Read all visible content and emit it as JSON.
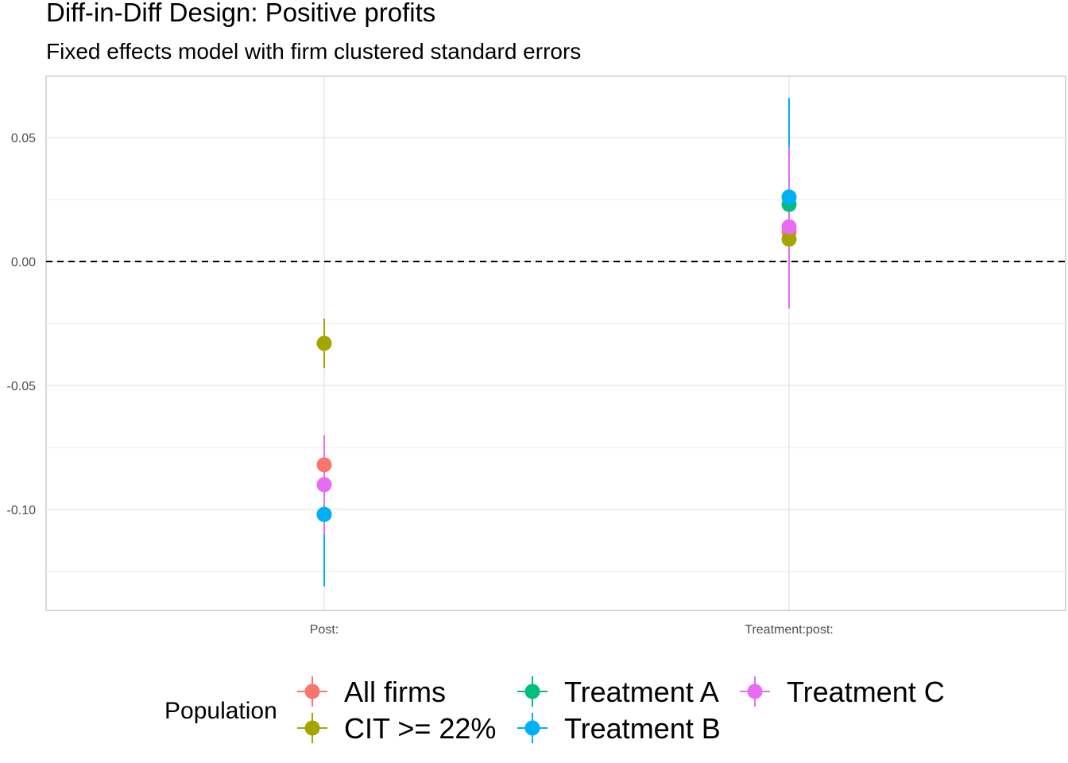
{
  "chart_data": {
    "type": "scatter",
    "title": "Diff-in-Diff Design: Positive profits",
    "subtitle": "Fixed effects model with firm clustered standard errors",
    "xlabel": "",
    "ylabel": "",
    "categories": [
      "Post:",
      "Treatment:post:"
    ],
    "ylim": [
      -0.14,
      0.075
    ],
    "yticks": [
      0.05,
      0.0,
      -0.05,
      -0.1
    ],
    "ytick_labels": [
      "0.05",
      "0.00",
      "-0.05",
      "-0.10"
    ],
    "reference_line": {
      "y": 0,
      "style": "dashed"
    },
    "grid": true,
    "legend": {
      "title": "Population",
      "position": "bottom"
    },
    "series": [
      {
        "name": "All firms",
        "color": "#F8766D",
        "points": [
          {
            "category": "Post:",
            "estimate": -0.082,
            "lower": -0.092,
            "upper": -0.072
          },
          {
            "category": "Treatment:post:",
            "estimate": 0.012,
            "lower": 0.002,
            "upper": 0.022
          }
        ]
      },
      {
        "name": "CIT >= 22%",
        "color": "#A3A500",
        "points": [
          {
            "category": "Post:",
            "estimate": -0.033,
            "lower": -0.043,
            "upper": -0.023
          },
          {
            "category": "Treatment:post:",
            "estimate": 0.009,
            "lower": -0.017,
            "upper": 0.034
          }
        ]
      },
      {
        "name": "Treatment A",
        "color": "#00BF7D",
        "points": [
          {
            "category": "Post:",
            "estimate": -0.102,
            "lower": -0.108,
            "upper": -0.096
          },
          {
            "category": "Treatment:post:",
            "estimate": 0.023,
            "lower": 0.013,
            "upper": 0.033
          }
        ]
      },
      {
        "name": "Treatment B",
        "color": "#00B0F6",
        "points": [
          {
            "category": "Post:",
            "estimate": -0.102,
            "lower": -0.131,
            "upper": -0.073
          },
          {
            "category": "Treatment:post:",
            "estimate": 0.026,
            "lower": -0.014,
            "upper": 0.066
          }
        ]
      },
      {
        "name": "Treatment C",
        "color": "#E76BF3",
        "points": [
          {
            "category": "Post:",
            "estimate": -0.09,
            "lower": -0.11,
            "upper": -0.07
          },
          {
            "category": "Treatment:post:",
            "estimate": 0.014,
            "lower": -0.019,
            "upper": 0.046
          }
        ]
      }
    ]
  }
}
